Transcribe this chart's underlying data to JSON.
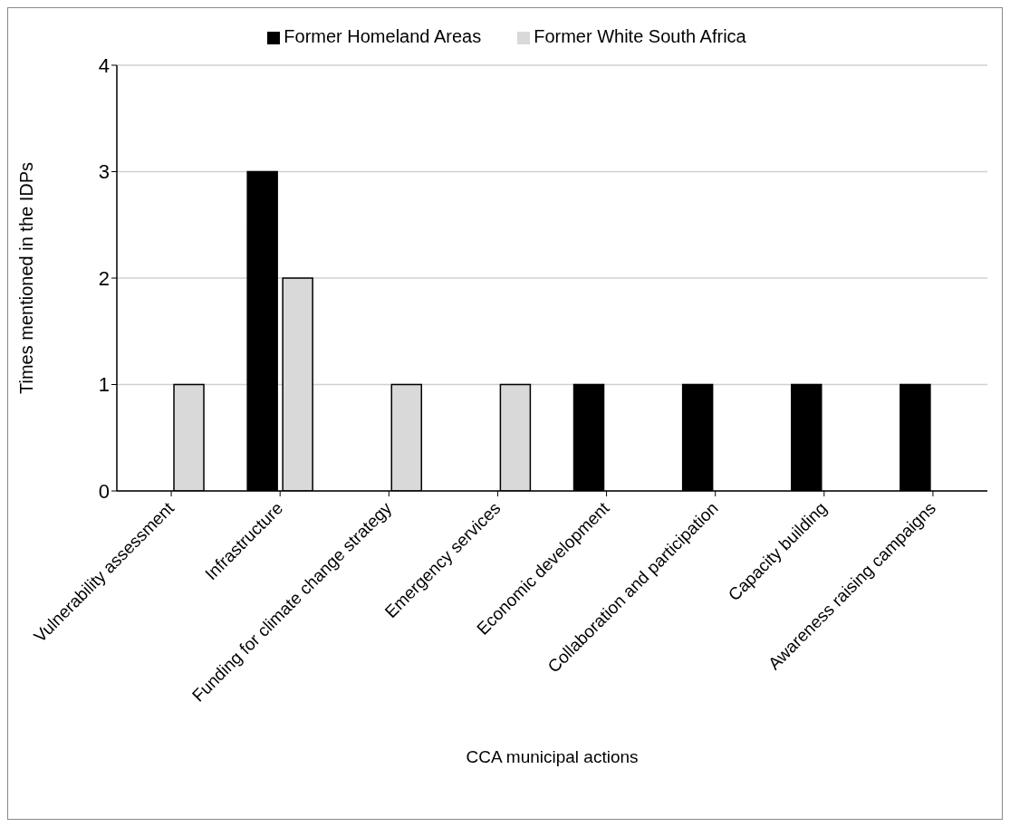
{
  "chart_data": {
    "type": "bar",
    "xlabel": "CCA municipal actions",
    "ylabel": "Times mentioned in the IDPs",
    "categories": [
      "Vulnerability assessment",
      "Infrastructure",
      "Funding for climate change strategy",
      "Emergency services",
      "Economic development",
      "Collaboration and participation",
      "Capacity building",
      "Awareness raising campaigns"
    ],
    "series": [
      {
        "name": "Former Homeland Areas",
        "color": "#000000",
        "values": [
          0,
          3,
          0,
          0,
          1,
          1,
          1,
          1
        ]
      },
      {
        "name": "Former White South Africa",
        "color": "#d9d9d9",
        "values": [
          1,
          2,
          1,
          1,
          0,
          0,
          0,
          0
        ]
      }
    ],
    "ylim": [
      0,
      4
    ],
    "yticks": [
      0,
      1,
      2,
      3,
      4
    ],
    "grid": "y",
    "legend": "top"
  }
}
